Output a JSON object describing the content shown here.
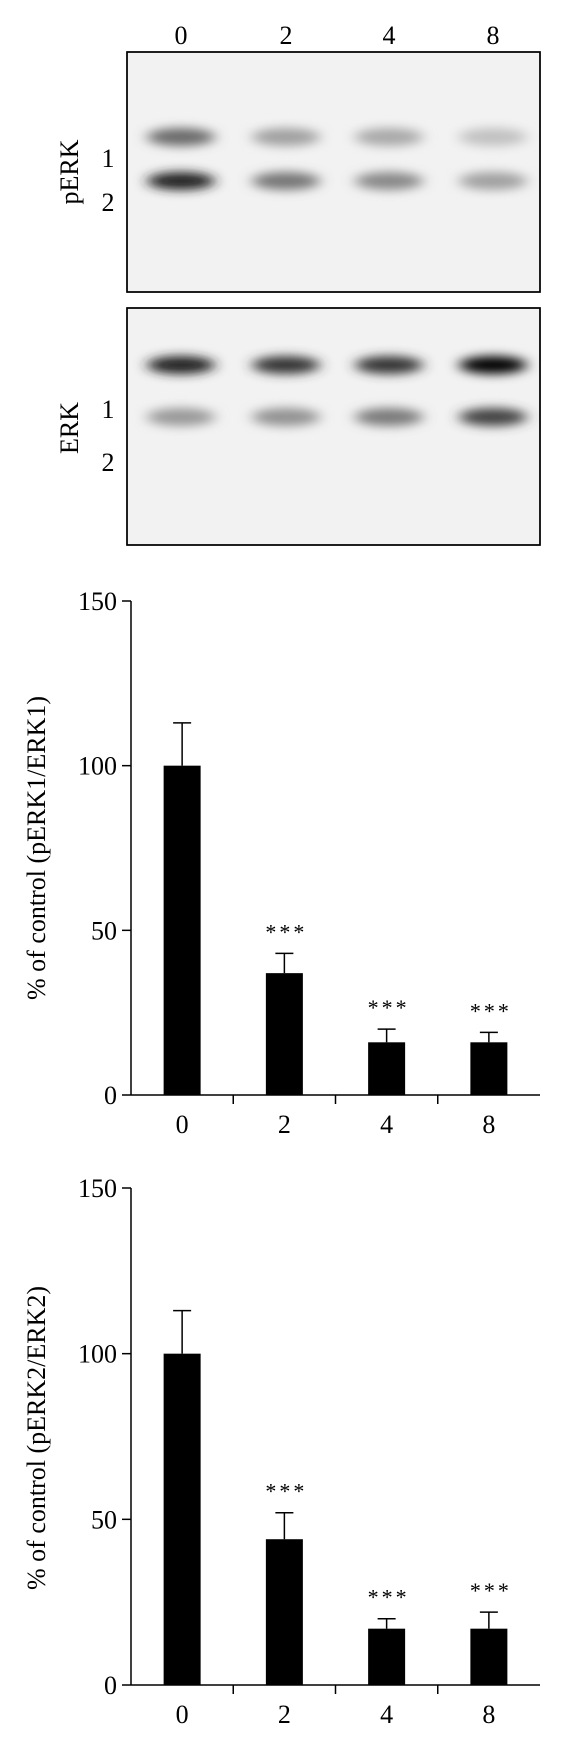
{
  "blots": {
    "lanes": [
      "0",
      "2",
      "4",
      "8"
    ],
    "band_labels": [
      "1",
      "2"
    ],
    "panels": [
      {
        "title": "pERK",
        "band_intensity": {
          "band_1": [
            0.55,
            0.32,
            0.28,
            0.18
          ],
          "band_2": [
            0.85,
            0.5,
            0.42,
            0.32
          ]
        }
      },
      {
        "title": "ERK",
        "band_intensity": {
          "band_1": [
            0.85,
            0.78,
            0.78,
            1.0
          ],
          "band_2": [
            0.35,
            0.38,
            0.48,
            0.72
          ]
        }
      }
    ]
  },
  "chart_data": [
    {
      "type": "bar",
      "title": "",
      "xlabel": "",
      "ylabel": "% of control (pERK1/ERK1)",
      "categories": [
        "0",
        "2",
        "4",
        "8"
      ],
      "values": [
        100,
        37,
        16,
        16
      ],
      "errors": [
        13,
        6,
        4,
        3
      ],
      "annotations": [
        "",
        "***",
        "***",
        "***"
      ],
      "ylim": [
        0,
        150
      ],
      "yticks": [
        0,
        50,
        100,
        150
      ],
      "bar_color": "#000000",
      "grid": false
    },
    {
      "type": "bar",
      "title": "",
      "xlabel": "",
      "ylabel": "% of control (pERK2/ERK2)",
      "categories": [
        "0",
        "2",
        "4",
        "8"
      ],
      "values": [
        100,
        44,
        17,
        17
      ],
      "errors": [
        13,
        8,
        3,
        5
      ],
      "annotations": [
        "",
        "***",
        "***",
        "***"
      ],
      "ylim": [
        0,
        150
      ],
      "yticks": [
        0,
        50,
        100,
        150
      ],
      "bar_color": "#000000",
      "grid": false
    }
  ]
}
